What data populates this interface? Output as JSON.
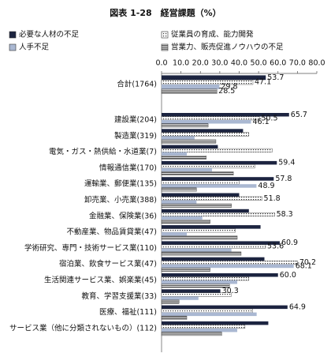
{
  "chart_data": {
    "type": "hbar",
    "title": "図表 1-28　経営課題（%）",
    "categories": [
      "合計(1764)",
      "建設業(204)",
      "製造業(319)",
      "電気・ガス・熱供給・水道業(7)",
      "情報通信業(170)",
      "運輸業、郵便業(135)",
      "卸売業、小売業(388)",
      "金融業、保険業(36)",
      "不動産業、物品賃貸業(47)",
      "学術研究、専門・技術サービス業(110)",
      "宿泊業、飲食サービス業(47)",
      "生活関連サービス業、娯楽業(45)",
      "教育、学習支援業(33)",
      "医療、福祉(111)",
      "サービス業（他に分類されないもの）(112)"
    ],
    "series": [
      {
        "name": "必要な人材の不足",
        "color": "#1c2440",
        "pattern": "solid",
        "values": [
          53.7,
          65.7,
          42,
          29,
          59.4,
          57.8,
          40,
          45,
          51,
          60.9,
          53,
          60.0,
          30.3,
          64.9,
          55
        ],
        "value_labels": [
          "53.7",
          "65.7",
          null,
          null,
          "59.4",
          "57.8",
          null,
          null,
          null,
          "60.9",
          null,
          "60.0",
          "30.3",
          "64.9",
          null
        ]
      },
      {
        "name": "従業員の育成、能力開発",
        "color": "#333333",
        "pattern": "dots",
        "values": [
          47.1,
          50.5,
          45,
          57,
          48,
          40,
          51.8,
          58.3,
          38,
          53.6,
          70.2,
          45,
          36,
          47,
          43
        ],
        "value_labels": [
          "47.1",
          "50.5",
          null,
          null,
          null,
          null,
          "51.8",
          "58.3",
          null,
          "53.6",
          "70.2",
          null,
          null,
          null,
          null
        ]
      },
      {
        "name": "人手不足",
        "color": "#aab8d2",
        "pattern": "solid",
        "values": [
          29.8,
          46.1,
          17,
          13,
          26,
          48.9,
          18,
          21,
          13,
          36,
          68.1,
          39,
          19,
          49,
          39
        ],
        "value_labels": [
          "29.8",
          "46.1",
          null,
          null,
          null,
          "48.9",
          null,
          null,
          null,
          null,
          "68.1",
          null,
          null,
          null,
          null
        ]
      },
      {
        "name": "営業力、販売促進ノウハウの不足",
        "color": "#333333",
        "pattern": "stripes",
        "values": [
          28.5,
          24,
          28,
          23,
          37,
          18,
          36,
          25,
          39,
          41,
          25,
          35,
          9,
          13,
          31
        ],
        "value_labels": [
          "28.5",
          null,
          null,
          null,
          null,
          null,
          null,
          null,
          null,
          null,
          null,
          null,
          null,
          null,
          null
        ]
      }
    ],
    "xlim": [
      0,
      80
    ],
    "xticks": [
      {
        "value": 0,
        "label": "0.0"
      },
      {
        "value": 10,
        "label": "10.0"
      },
      {
        "value": 20,
        "label": "20.0"
      },
      {
        "value": 30,
        "label": "30.0"
      },
      {
        "value": 40,
        "label": "40.0"
      },
      {
        "value": 50,
        "label": "50.0"
      },
      {
        "value": 60,
        "label": "60.0"
      },
      {
        "value": 70,
        "label": "70.0"
      },
      {
        "value": 80,
        "label": "80.0"
      }
    ]
  }
}
